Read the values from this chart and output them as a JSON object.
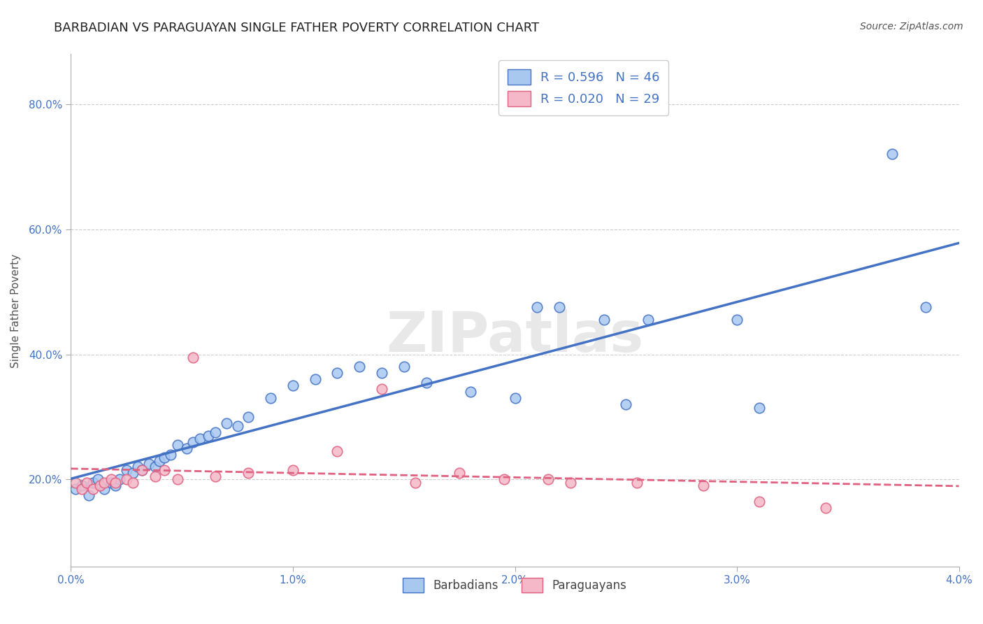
{
  "title": "BARBADIAN VS PARAGUAYAN SINGLE FATHER POVERTY CORRELATION CHART",
  "source": "Source: ZipAtlas.com",
  "ylabel": "Single Father Poverty",
  "xlim": [
    0.0,
    0.04
  ],
  "ylim": [
    0.06,
    0.88
  ],
  "yticks": [
    0.2,
    0.4,
    0.6,
    0.8
  ],
  "ytick_labels": [
    "20.0%",
    "40.0%",
    "60.0%",
    "80.0%"
  ],
  "xticks": [
    0.0,
    0.01,
    0.02,
    0.03,
    0.04
  ],
  "xtick_labels": [
    "0.0%",
    "1.0%",
    "2.0%",
    "3.0%",
    "4.0%"
  ],
  "grid_color": "#cccccc",
  "background_color": "#ffffff",
  "blue_fill": "#a8c8f0",
  "blue_edge": "#4472c4",
  "blue_line": "#4472c4",
  "pink_fill": "#f4b8c8",
  "pink_edge": "#e06080",
  "pink_line": "#e06080",
  "legend_line1": "R = 0.596   N = 46",
  "legend_line2": "R = 0.020   N = 29",
  "legend_label_blue": "Barbadians",
  "legend_label_pink": "Paraguayans",
  "watermark": "ZIPatlas",
  "title_fontsize": 13,
  "axis_label_fontsize": 11,
  "tick_fontsize": 11,
  "legend_fontsize": 13,
  "source_fontsize": 10,
  "blue_x": [
    0.0002,
    0.0005,
    0.0008,
    0.001,
    0.0012,
    0.0015,
    0.0018,
    0.002,
    0.0022,
    0.0025,
    0.0028,
    0.003,
    0.0032,
    0.0035,
    0.0038,
    0.004,
    0.0042,
    0.0045,
    0.0048,
    0.0052,
    0.0055,
    0.0058,
    0.0062,
    0.0065,
    0.007,
    0.0075,
    0.008,
    0.009,
    0.01,
    0.011,
    0.012,
    0.013,
    0.014,
    0.015,
    0.016,
    0.018,
    0.02,
    0.021,
    0.022,
    0.024,
    0.025,
    0.026,
    0.03,
    0.031,
    0.037,
    0.0385
  ],
  "blue_y": [
    0.185,
    0.19,
    0.175,
    0.195,
    0.2,
    0.185,
    0.195,
    0.19,
    0.2,
    0.215,
    0.21,
    0.22,
    0.215,
    0.225,
    0.22,
    0.23,
    0.235,
    0.24,
    0.255,
    0.25,
    0.26,
    0.265,
    0.27,
    0.275,
    0.29,
    0.285,
    0.3,
    0.33,
    0.35,
    0.36,
    0.37,
    0.38,
    0.37,
    0.38,
    0.355,
    0.34,
    0.33,
    0.475,
    0.475,
    0.455,
    0.32,
    0.455,
    0.455,
    0.315,
    0.72,
    0.475
  ],
  "pink_x": [
    0.0002,
    0.0005,
    0.0007,
    0.001,
    0.0013,
    0.0015,
    0.0018,
    0.002,
    0.0025,
    0.0028,
    0.0032,
    0.0038,
    0.0042,
    0.0048,
    0.0055,
    0.0065,
    0.008,
    0.01,
    0.012,
    0.014,
    0.0155,
    0.0175,
    0.0195,
    0.0215,
    0.0225,
    0.0255,
    0.0285,
    0.031,
    0.034
  ],
  "pink_y": [
    0.195,
    0.185,
    0.195,
    0.185,
    0.19,
    0.195,
    0.2,
    0.195,
    0.2,
    0.195,
    0.215,
    0.205,
    0.215,
    0.2,
    0.395,
    0.205,
    0.21,
    0.215,
    0.245,
    0.345,
    0.195,
    0.21,
    0.2,
    0.2,
    0.195,
    0.195,
    0.19,
    0.165,
    0.155
  ]
}
